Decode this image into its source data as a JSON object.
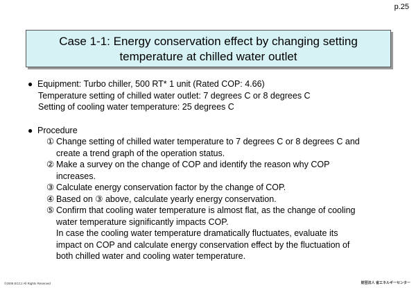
{
  "page_number": "p.25",
  "title": {
    "line1": "Case 1-1: Energy conservation effect by changing setting",
    "line2": "temperature at chilled water outlet"
  },
  "equipment": {
    "bullet": "●",
    "line1": "Equipment: Turbo chiller, 500 RT* 1 unit (Rated COP: 4.66)",
    "line2": "Temperature setting of chilled water outlet: 7 degrees C or 8 degrees C",
    "line3": "Setting of cooling water temperature: 25 degrees C"
  },
  "procedure": {
    "bullet": "●",
    "heading": "Procedure",
    "steps": [
      {
        "num": "①",
        "lines": [
          "Change setting of chilled water temperature to 7 degrees C or 8 degrees C and",
          "create a trend graph of the operation status."
        ]
      },
      {
        "num": "②",
        "lines": [
          "Make a survey on the change of COP and identify the reason why COP",
          "increases."
        ]
      },
      {
        "num": "③",
        "lines": [
          "Calculate energy conservation factor by the change of COP."
        ]
      },
      {
        "num": "④",
        "lines": [
          "Based on ③ above, calculate yearly energy conservation."
        ]
      },
      {
        "num": "⑤",
        "lines": [
          "Confirm that cooling water temperature is almost flat, as the change of cooling",
          "water temperature significantly impacts COP.",
          "In case the cooling water temperature dramatically fluctuates, evaluate its",
          "impact on COP and calculate energy conservation effect by the fluctuation of",
          "both chilled water and cooling water temperature."
        ]
      }
    ]
  },
  "footer": {
    "copyright": "©2008 ECCJ All Rights Reserved",
    "organization": "財団法人 省エネルギーセンター"
  }
}
